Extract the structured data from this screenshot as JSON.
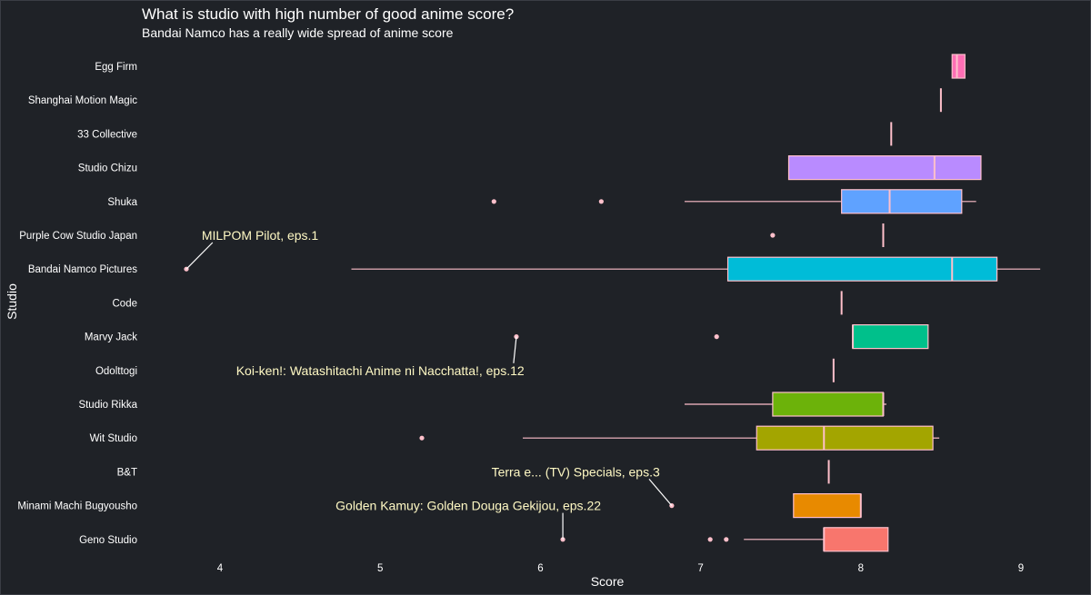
{
  "chart_data": {
    "type": "boxplot",
    "title": "What is studio with high number of good anime score?",
    "subtitle": "Bandai Namco has a really wide spread of anime score",
    "xlabel": "Score",
    "ylabel": "Studio",
    "xlim": [
      3.5,
      9.15
    ],
    "xticks": [
      4,
      5,
      6,
      7,
      8,
      9
    ],
    "grid": false,
    "legend": "none",
    "background": "#1f2227",
    "series": [
      {
        "studio": "Egg Firm",
        "color": "#ff6fb5",
        "whisker_low": 8.57,
        "q1": 8.57,
        "median": 8.6,
        "q3": 8.65,
        "whisker_high": 8.65,
        "outliers": []
      },
      {
        "studio": "Shanghai Motion Magic",
        "color": "#ff6fb5",
        "whisker_low": 8.5,
        "q1": 8.5,
        "median": 8.5,
        "q3": 8.5,
        "whisker_high": 8.5,
        "outliers": []
      },
      {
        "studio": "33 Collective",
        "color": "#f066e0",
        "whisker_low": 8.19,
        "q1": 8.19,
        "median": 8.19,
        "q3": 8.19,
        "whisker_high": 8.19,
        "outliers": []
      },
      {
        "studio": "Studio Chizu",
        "color": "#b98bff",
        "whisker_low": 7.55,
        "q1": 7.55,
        "median": 8.46,
        "q3": 8.75,
        "whisker_high": 8.75,
        "outliers": []
      },
      {
        "studio": "Shuka",
        "color": "#5fa2ff",
        "whisker_low": 6.9,
        "q1": 7.88,
        "median": 8.18,
        "q3": 8.63,
        "whisker_high": 8.72,
        "outliers": [
          5.71,
          6.38
        ]
      },
      {
        "studio": "Purple Cow Studio Japan",
        "color": "#00b8e6",
        "whisker_low": 8.14,
        "q1": 8.14,
        "median": 8.14,
        "q3": 8.14,
        "whisker_high": 8.14,
        "outliers": [
          7.45
        ]
      },
      {
        "studio": "Bandai Namco Pictures",
        "color": "#00bcd8",
        "whisker_low": 4.82,
        "q1": 7.17,
        "median": 8.57,
        "q3": 8.85,
        "whisker_high": 9.12,
        "outliers": [
          3.79
        ]
      },
      {
        "studio": "Code",
        "color": "#00c0a0",
        "whisker_low": 7.88,
        "q1": 7.88,
        "median": 7.88,
        "q3": 7.88,
        "whisker_high": 7.88,
        "outliers": []
      },
      {
        "studio": "Marvy Jack",
        "color": "#00c08b",
        "whisker_low": 7.95,
        "q1": 7.95,
        "median": 7.95,
        "q3": 8.42,
        "whisker_high": 8.42,
        "outliers": [
          5.85,
          7.1
        ]
      },
      {
        "studio": "Odolttogi",
        "color": "#3dba4a",
        "whisker_low": 7.83,
        "q1": 7.83,
        "median": 7.83,
        "q3": 7.83,
        "whisker_high": 7.83,
        "outliers": []
      },
      {
        "studio": "Studio Rikka",
        "color": "#6cb20a",
        "whisker_low": 6.9,
        "q1": 7.45,
        "median": 8.14,
        "q3": 8.14,
        "whisker_high": 8.16,
        "outliers": []
      },
      {
        "studio": "Wit Studio",
        "color": "#a3a500",
        "whisker_low": 5.89,
        "q1": 7.35,
        "median": 7.77,
        "q3": 8.45,
        "whisker_high": 8.49,
        "outliers": [
          5.26
        ]
      },
      {
        "studio": "B&T",
        "color": "#c49a00",
        "whisker_low": 7.8,
        "q1": 7.8,
        "median": 7.8,
        "q3": 7.8,
        "whisker_high": 7.8,
        "outliers": []
      },
      {
        "studio": "Minami Machi Bugyousho",
        "color": "#e88a00",
        "whisker_low": 7.58,
        "q1": 7.58,
        "median": 8.0,
        "q3": 8.0,
        "whisker_high": 8.0,
        "outliers": [
          6.82
        ]
      },
      {
        "studio": "Geno Studio",
        "color": "#f8766d",
        "whisker_low": 7.27,
        "q1": 7.77,
        "median": 7.77,
        "q3": 8.17,
        "whisker_high": 8.17,
        "outliers": [
          6.14,
          7.06,
          7.16
        ]
      }
    ],
    "annotations": [
      {
        "label": "MILPOM Pilot, eps.1",
        "studio": "Bandai Namco Pictures",
        "score": 3.79,
        "text_score": 4.25,
        "text_row": "Purple Cow Studio Japan"
      },
      {
        "label": "Koi-ken!: Watashitachi Anime ni Nacchatta!, eps.12",
        "studio": "Marvy Jack",
        "score": 5.85,
        "text_score": 5.0,
        "text_row": "Odolttogi"
      },
      {
        "label": "Terra e... (TV) Specials, eps.3",
        "studio": "Minami Machi Bugyousho",
        "score": 6.82,
        "text_score": 6.22,
        "text_row": "B&T"
      },
      {
        "label": "Golden Kamuy: Golden Douga Gekijou, eps.22",
        "studio": "Geno Studio",
        "score": 6.14,
        "text_score": 5.55,
        "text_row": "Minami Machi Bugyousho"
      }
    ]
  }
}
